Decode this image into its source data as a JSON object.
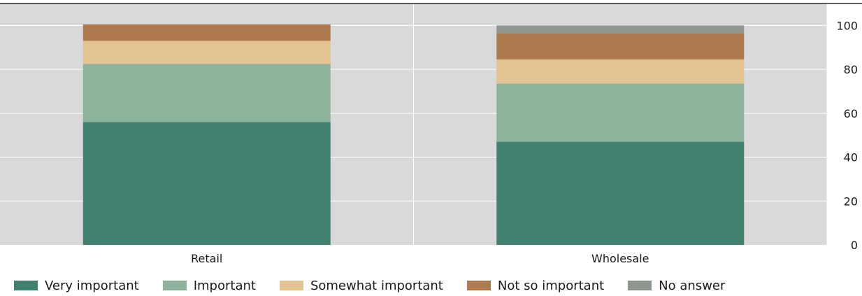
{
  "chart_data": {
    "type": "bar",
    "stacked": true,
    "categories": [
      "Retail",
      "Wholesale"
    ],
    "series": [
      {
        "name": "Very important",
        "color": "#428070",
        "values": [
          56,
          47
        ]
      },
      {
        "name": "Important",
        "color": "#8db39b",
        "values": [
          26.5,
          26.5
        ]
      },
      {
        "name": "Somewhat important",
        "color": "#e4c493",
        "values": [
          10.5,
          11
        ]
      },
      {
        "name": "Not so important",
        "color": "#ad7a4f",
        "values": [
          7.5,
          12
        ]
      },
      {
        "name": "No answer",
        "color": "#8e978f",
        "values": [
          0,
          3.5
        ]
      }
    ],
    "ylim": [
      0,
      110
    ],
    "yticks": [
      "0",
      "20",
      "40",
      "60",
      "80",
      "100"
    ],
    "ytick_values": [
      0,
      20,
      40,
      60,
      80,
      100
    ],
    "y_axis_position": "right",
    "grid": true,
    "legend_position": "bottom",
    "plot_background": "#d9d9d9",
    "title": "",
    "xlabel": "",
    "ylabel": ""
  }
}
